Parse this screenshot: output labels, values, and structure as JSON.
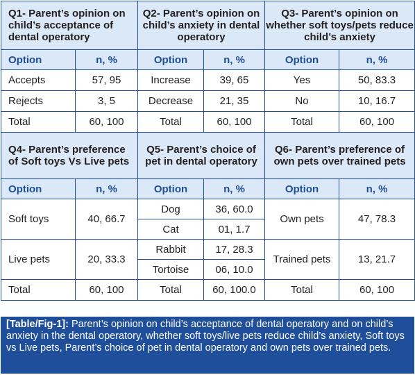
{
  "q1": {
    "title": "Q1- Parent’s opinion on child’s acceptance of dental operatory",
    "option_header": "Option",
    "n_header": "n, %",
    "rows": [
      {
        "option": "Accepts",
        "n": "57, 95"
      },
      {
        "option": "Rejects",
        "n": "3, 5"
      },
      {
        "option": "Total",
        "n": "60, 100"
      }
    ]
  },
  "q2": {
    "title": "Q2- Parent’s opinion on child’s anxiety in dental operatory",
    "option_header": "Option",
    "n_header": "n, %",
    "rows": [
      {
        "option": "Increase",
        "n": "39, 65"
      },
      {
        "option": "Decrease",
        "n": "21, 35"
      },
      {
        "option": "Total",
        "n": "60, 100"
      }
    ]
  },
  "q3": {
    "title": "Q3- Parent’s opinion on whether soft toys/pets reduce child’s anxiety",
    "option_header": "Option",
    "n_header": "n, %",
    "rows": [
      {
        "option": "Yes",
        "n": "50, 83.3"
      },
      {
        "option": "No",
        "n": "10, 16.7"
      },
      {
        "option": "Total",
        "n": "60, 100"
      }
    ]
  },
  "q4": {
    "title": "Q4- Parent’s preference of Soft toys Vs Live pets",
    "option_header": "Option",
    "n_header": "n, %",
    "rows": [
      {
        "option": "Soft toys",
        "n": "40, 66.7"
      },
      {
        "option": "Live pets",
        "n": "20, 33.3"
      },
      {
        "option": "Total",
        "n": "60, 100"
      }
    ]
  },
  "q5": {
    "title": "Q5- Parent’s choice of pet in dental operatory",
    "option_header": "Option",
    "n_header": "n, %",
    "rows": [
      {
        "option": "Dog",
        "n": "36, 60.0"
      },
      {
        "option": "Cat",
        "n": "01, 1.7"
      },
      {
        "option": "Rabbit",
        "n": "17, 28.3"
      },
      {
        "option": "Tortoise",
        "n": "06, 10.0"
      },
      {
        "option": "Total",
        "n": "60, 100.0"
      }
    ]
  },
  "q6": {
    "title": "Q6- Parent’s preference of own pets over trained pets",
    "option_header": "Option",
    "n_header": "n, %",
    "rows": [
      {
        "option": "Own pets",
        "n": "47, 78.3"
      },
      {
        "option": "Trained pets",
        "n": "13, 21.7"
      },
      {
        "option": "Total",
        "n": "60, 100"
      }
    ]
  },
  "caption": {
    "label": "[Table/Fig-1]:",
    "text": " Parent’s opinion on child’s acceptance of dental operatory and on child’s anxiety in the dental operatory, whether soft toys/live pets reduce child’s anxiety, Soft toys vs Live pets, Parent’s choice of pet in dental operatory and own pets over trained pets."
  },
  "colors": {
    "border": "#1f4e9a",
    "header_bg": "#dbe8f7",
    "caption_bg": "#1f4e9a"
  }
}
